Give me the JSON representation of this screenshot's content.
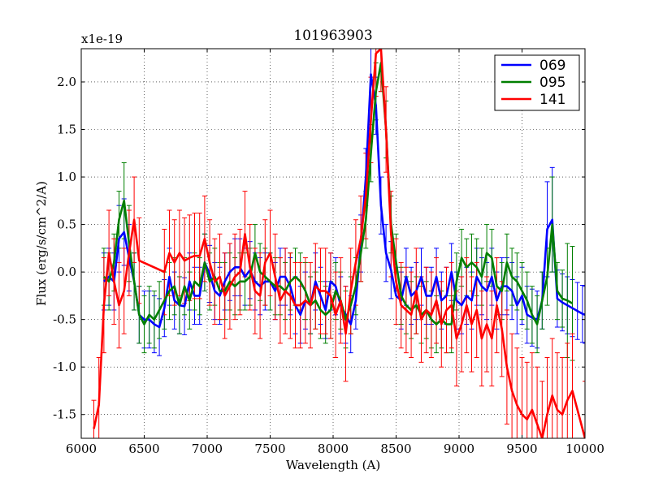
{
  "chart_data": {
    "type": "line",
    "title": "101963903",
    "xlabel": "Wavelength (A)",
    "ylabel": "Flux (erg/s/cm^2/A)",
    "y_scale_label": "x1e-19",
    "xlim": [
      6000,
      10000
    ],
    "ylim": [
      -1.75,
      2.35
    ],
    "xticks": [
      6000,
      6500,
      7000,
      7500,
      8000,
      8500,
      9000,
      9500,
      10000
    ],
    "xtick_labels": [
      "6000",
      "6500",
      "7000",
      "7500",
      "8000",
      "8500",
      "9000",
      "9500",
      "10000"
    ],
    "yticks": [
      -1.5,
      -1.0,
      -0.5,
      0.0,
      0.5,
      1.0,
      1.5,
      2.0
    ],
    "ytick_labels": [
      "-1.5",
      "-1.0",
      "-0.5",
      "0.0",
      "0.5",
      "1.0",
      "1.5",
      "2.0"
    ],
    "grid": true,
    "legend_position": "top-right",
    "series": [
      {
        "name": "069",
        "color": "#0000ff",
        "x": [
          6180,
          6220,
          6260,
          6300,
          6340,
          6380,
          6420,
          6460,
          6500,
          6540,
          6580,
          6620,
          6660,
          6700,
          6740,
          6780,
          6820,
          6860,
          6900,
          6940,
          6980,
          7020,
          7060,
          7100,
          7140,
          7180,
          7220,
          7260,
          7300,
          7340,
          7380,
          7420,
          7460,
          7500,
          7540,
          7580,
          7620,
          7660,
          7700,
          7740,
          7780,
          7820,
          7860,
          7900,
          7940,
          7980,
          8020,
          8060,
          8100,
          8140,
          8180,
          8220,
          8260,
          8300,
          8340,
          8380,
          8420,
          8460,
          8500,
          8540,
          8580,
          8620,
          8660,
          8700,
          8740,
          8780,
          8820,
          8860,
          8900,
          8940,
          8980,
          9020,
          9060,
          9100,
          9140,
          9180,
          9220,
          9260,
          9300,
          9340,
          9380,
          9420,
          9460,
          9500,
          9540,
          9580,
          9620,
          9660,
          9700,
          9740,
          9780,
          9820,
          9860,
          9900,
          9940,
          9980,
          10000
        ],
        "y": [
          -0.1,
          -0.05,
          -0.1,
          0.35,
          0.42,
          0.15,
          -0.1,
          -0.45,
          -0.5,
          -0.5,
          -0.55,
          -0.58,
          -0.38,
          -0.05,
          -0.3,
          -0.35,
          -0.36,
          -0.1,
          -0.25,
          -0.25,
          0.1,
          -0.02,
          -0.2,
          -0.25,
          -0.1,
          0.0,
          0.05,
          0.05,
          -0.05,
          0.02,
          -0.1,
          -0.15,
          -0.1,
          -0.1,
          -0.2,
          -0.05,
          -0.05,
          -0.15,
          -0.35,
          -0.45,
          -0.3,
          -0.35,
          -0.1,
          -0.25,
          -0.4,
          -0.1,
          -0.15,
          -0.35,
          -0.45,
          -0.55,
          -0.3,
          0.3,
          1.0,
          2.08,
          1.75,
          0.7,
          0.2,
          0.02,
          -0.25,
          -0.3,
          -0.05,
          -0.25,
          -0.2,
          -0.05,
          -0.25,
          -0.25,
          -0.05,
          -0.3,
          -0.25,
          0.0,
          -0.3,
          -0.35,
          -0.25,
          -0.3,
          -0.05,
          -0.15,
          -0.2,
          -0.05,
          -0.3,
          -0.15,
          -0.15,
          -0.2,
          -0.35,
          -0.25,
          -0.45,
          -0.48,
          -0.5,
          -0.3,
          0.45,
          0.55,
          -0.28,
          -0.32,
          -0.35,
          -0.38,
          -0.41,
          -0.44,
          -0.45
        ],
        "err": [
          0.3,
          0.3,
          0.3,
          0.35,
          0.35,
          0.35,
          0.3,
          0.3,
          0.3,
          0.3,
          0.3,
          0.3,
          0.3,
          0.3,
          0.3,
          0.3,
          0.3,
          0.3,
          0.3,
          0.3,
          0.3,
          0.3,
          0.3,
          0.3,
          0.3,
          0.3,
          0.3,
          0.3,
          0.3,
          0.3,
          0.3,
          0.3,
          0.3,
          0.3,
          0.3,
          0.3,
          0.3,
          0.3,
          0.3,
          0.3,
          0.3,
          0.3,
          0.3,
          0.3,
          0.3,
          0.3,
          0.3,
          0.3,
          0.3,
          0.3,
          0.3,
          0.3,
          0.3,
          0.3,
          0.3,
          0.3,
          0.3,
          0.3,
          0.3,
          0.3,
          0.3,
          0.3,
          0.3,
          0.3,
          0.3,
          0.3,
          0.3,
          0.3,
          0.3,
          0.3,
          0.3,
          0.3,
          0.3,
          0.3,
          0.3,
          0.3,
          0.3,
          0.3,
          0.3,
          0.3,
          0.3,
          0.3,
          0.3,
          0.3,
          0.3,
          0.3,
          0.3,
          0.3,
          0.5,
          0.55,
          0.3,
          0.3,
          0.3,
          0.3,
          0.3,
          0.3,
          0.3
        ]
      },
      {
        "name": "095",
        "color": "#007f00",
        "x": [
          6180,
          6220,
          6260,
          6300,
          6340,
          6380,
          6420,
          6460,
          6500,
          6540,
          6580,
          6620,
          6660,
          6700,
          6740,
          6780,
          6820,
          6860,
          6900,
          6940,
          6980,
          7020,
          7060,
          7100,
          7140,
          7180,
          7220,
          7260,
          7300,
          7340,
          7380,
          7420,
          7460,
          7500,
          7540,
          7580,
          7620,
          7660,
          7700,
          7740,
          7780,
          7820,
          7860,
          7900,
          7940,
          7980,
          8020,
          8060,
          8100,
          8140,
          8180,
          8220,
          8260,
          8300,
          8340,
          8380,
          8420,
          8460,
          8500,
          8540,
          8580,
          8620,
          8660,
          8700,
          8740,
          8780,
          8820,
          8860,
          8900,
          8940,
          8980,
          9020,
          9060,
          9100,
          9140,
          9180,
          9220,
          9260,
          9300,
          9340,
          9380,
          9420,
          9460,
          9500,
          9540,
          9580,
          9620,
          9660,
          9700,
          9740,
          9780,
          9820,
          9860,
          9900
        ],
        "y": [
          -0.05,
          -0.1,
          0.1,
          0.55,
          0.75,
          0.3,
          -0.1,
          -0.45,
          -0.55,
          -0.45,
          -0.5,
          -0.4,
          -0.3,
          -0.2,
          -0.15,
          -0.35,
          -0.15,
          -0.3,
          -0.1,
          -0.15,
          0.1,
          -0.1,
          -0.05,
          -0.2,
          -0.2,
          -0.1,
          -0.15,
          -0.1,
          -0.1,
          -0.05,
          0.2,
          0.0,
          -0.05,
          -0.1,
          -0.15,
          -0.15,
          -0.2,
          -0.1,
          -0.05,
          -0.1,
          -0.2,
          -0.35,
          -0.3,
          -0.4,
          -0.45,
          -0.4,
          -0.2,
          -0.3,
          -0.5,
          -0.35,
          -0.15,
          0.2,
          0.55,
          1.25,
          1.9,
          2.2,
          1.5,
          0.5,
          0.1,
          -0.25,
          -0.35,
          -0.4,
          -0.35,
          -0.45,
          -0.4,
          -0.5,
          -0.55,
          -0.5,
          -0.55,
          -0.55,
          -0.1,
          0.15,
          0.05,
          0.1,
          0.05,
          -0.05,
          0.2,
          0.15,
          -0.15,
          -0.2,
          0.1,
          -0.05,
          -0.1,
          -0.2,
          -0.3,
          -0.45,
          -0.55,
          -0.3,
          -0.05,
          0.5,
          -0.2,
          -0.28,
          -0.3,
          -0.33
        ],
        "err": [
          0.3,
          0.3,
          0.3,
          0.3,
          0.4,
          0.4,
          0.3,
          0.3,
          0.3,
          0.3,
          0.3,
          0.3,
          0.3,
          0.3,
          0.3,
          0.3,
          0.3,
          0.3,
          0.3,
          0.3,
          0.3,
          0.3,
          0.3,
          0.3,
          0.3,
          0.3,
          0.3,
          0.3,
          0.3,
          0.3,
          0.3,
          0.3,
          0.3,
          0.3,
          0.3,
          0.3,
          0.3,
          0.3,
          0.3,
          0.3,
          0.3,
          0.3,
          0.3,
          0.3,
          0.3,
          0.3,
          0.3,
          0.3,
          0.3,
          0.3,
          0.3,
          0.3,
          0.3,
          0.3,
          0.3,
          0.3,
          0.3,
          0.3,
          0.3,
          0.3,
          0.3,
          0.3,
          0.3,
          0.3,
          0.3,
          0.3,
          0.3,
          0.3,
          0.3,
          0.3,
          0.3,
          0.3,
          0.3,
          0.3,
          0.3,
          0.3,
          0.3,
          0.3,
          0.3,
          0.3,
          0.3,
          0.3,
          0.3,
          0.3,
          0.3,
          0.3,
          0.3,
          0.3,
          0.3,
          0.5,
          0.3,
          0.3,
          0.6,
          0.6
        ]
      },
      {
        "name": "141",
        "color": "#ff0000",
        "x": [
          6100,
          6140,
          6180,
          6220,
          6260,
          6300,
          6340,
          6380,
          6420,
          6460,
          6660,
          6700,
          6740,
          6780,
          6820,
          6860,
          6900,
          6940,
          6980,
          7020,
          7060,
          7100,
          7140,
          7180,
          7220,
          7260,
          7300,
          7340,
          7380,
          7420,
          7460,
          7500,
          7540,
          7580,
          7620,
          7660,
          7700,
          7740,
          7780,
          7820,
          7860,
          7900,
          7940,
          7980,
          8020,
          8060,
          8100,
          8140,
          8180,
          8220,
          8260,
          8300,
          8340,
          8380,
          8420,
          8460,
          8500,
          8540,
          8580,
          8620,
          8660,
          8700,
          8740,
          8780,
          8820,
          8860,
          8900,
          8940,
          8980,
          9020,
          9060,
          9100,
          9140,
          9180,
          9220,
          9260,
          9300,
          9340,
          9380,
          9420,
          9460,
          9500,
          9540,
          9580,
          9620,
          9660,
          9700,
          9740,
          9780,
          9820,
          9860,
          9900,
          10000
        ],
        "y": [
          -1.65,
          -1.4,
          -0.35,
          0.2,
          -0.1,
          -0.35,
          -0.2,
          0.2,
          0.55,
          0.12,
          0.0,
          0.2,
          0.1,
          0.2,
          0.12,
          0.15,
          0.17,
          0.17,
          0.35,
          0.1,
          -0.1,
          -0.05,
          -0.25,
          -0.15,
          -0.05,
          0.0,
          0.4,
          0.05,
          -0.2,
          -0.25,
          0.1,
          0.2,
          -0.05,
          -0.3,
          -0.2,
          -0.25,
          -0.35,
          -0.35,
          -0.3,
          -0.35,
          -0.15,
          -0.2,
          -0.2,
          -0.25,
          -0.45,
          -0.3,
          -0.65,
          -0.2,
          0.1,
          0.35,
          0.8,
          1.6,
          2.3,
          2.35,
          1.5,
          0.4,
          -0.1,
          -0.35,
          -0.4,
          -0.45,
          -0.2,
          -0.5,
          -0.4,
          -0.45,
          -0.3,
          -0.55,
          -0.4,
          -0.35,
          -0.7,
          -0.55,
          -0.35,
          -0.55,
          -0.4,
          -0.7,
          -0.55,
          -0.7,
          -0.35,
          -0.6,
          -1.0,
          -1.25,
          -1.4,
          -1.5,
          -1.55,
          -1.45,
          -1.6,
          -1.75,
          -1.5,
          -1.3,
          -1.45,
          -1.5,
          -1.35,
          -1.25,
          -1.75
        ],
        "err": [
          0.3,
          0.5,
          0.5,
          0.45,
          0.45,
          0.45,
          0.45,
          0.45,
          0.45,
          0.45,
          0.45,
          0.45,
          0.45,
          0.45,
          0.45,
          0.45,
          0.45,
          0.45,
          0.45,
          0.45,
          0.45,
          0.45,
          0.45,
          0.45,
          0.45,
          0.45,
          0.45,
          0.45,
          0.45,
          0.45,
          0.45,
          0.45,
          0.45,
          0.45,
          0.45,
          0.45,
          0.45,
          0.45,
          0.45,
          0.45,
          0.45,
          0.45,
          0.45,
          0.45,
          0.45,
          0.45,
          0.5,
          0.45,
          0.45,
          0.45,
          0.45,
          0.45,
          0.45,
          0.45,
          0.45,
          0.45,
          0.45,
          0.45,
          0.45,
          0.45,
          0.45,
          0.45,
          0.45,
          0.45,
          0.45,
          0.45,
          0.45,
          0.45,
          0.5,
          0.5,
          0.5,
          0.5,
          0.5,
          0.5,
          0.5,
          0.5,
          0.5,
          0.5,
          0.6,
          0.6,
          0.6,
          0.6,
          0.6,
          0.6,
          0.6,
          0.6,
          0.6,
          0.6,
          0.6,
          0.6,
          0.6,
          0.6,
          0.6
        ]
      }
    ]
  }
}
